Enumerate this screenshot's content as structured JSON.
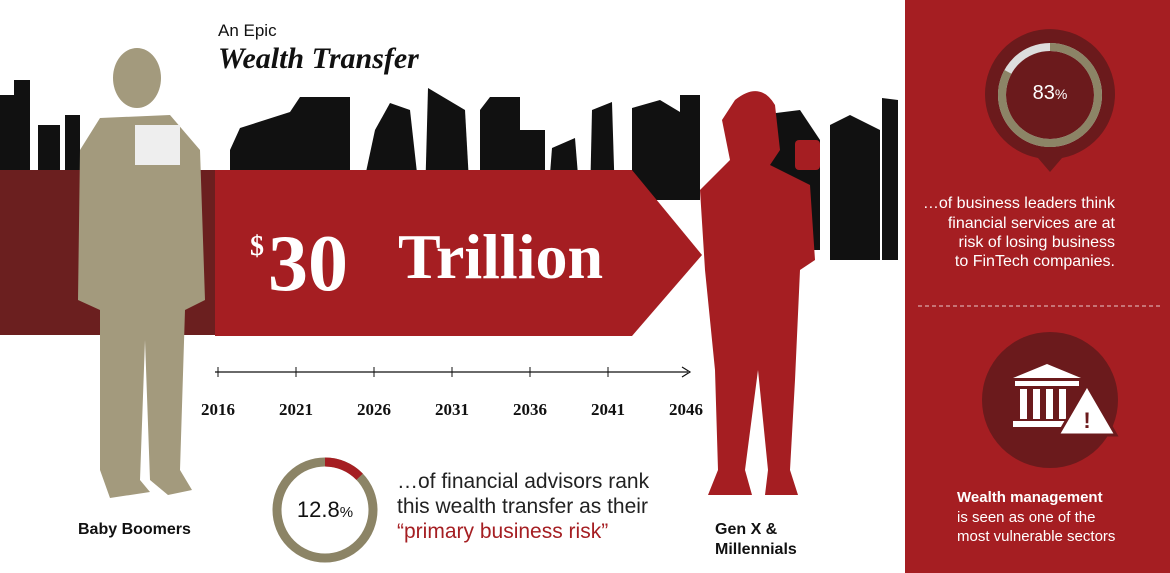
{
  "title": {
    "kicker": "An Epic",
    "main": "Wealth Transfer"
  },
  "headline": {
    "currency": "$",
    "amount": 30,
    "unit": "Trillion"
  },
  "timeline": {
    "years": [
      2016,
      2021,
      2026,
      2031,
      2036,
      2041,
      2046
    ]
  },
  "groups": {
    "left": "Baby Boomers",
    "right": [
      "Gen X &",
      "Millennials"
    ]
  },
  "advisors": {
    "value": 12.8,
    "unit": "%",
    "lines": [
      "…of financial advisors rank",
      "this wealth transfer as their"
    ],
    "highlight": "“primary business risk”"
  },
  "leaders": {
    "value": 83,
    "unit": "%",
    "lines": [
      "…of business leaders think",
      "financial services are at",
      "risk of losing business",
      "to FinTech companies."
    ]
  },
  "sector": {
    "bold": "Wealth management",
    "lines": [
      "is seen as one of the",
      "most vulnerable sectors"
    ]
  }
}
